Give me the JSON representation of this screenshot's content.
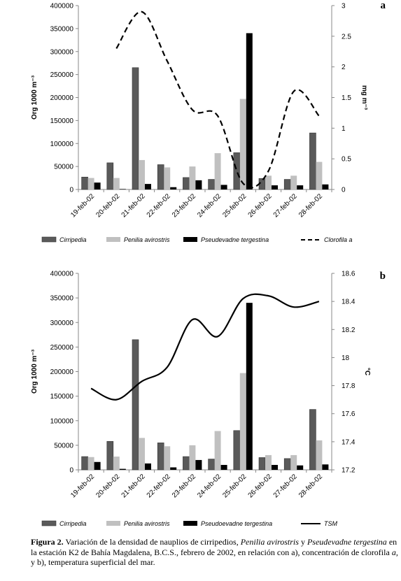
{
  "caption": {
    "label": "Figura 2.",
    "parts": [
      {
        "t": " Variación de la densidad de nauplios de cirripedios, ",
        "i": false
      },
      {
        "t": "Penilia avirostris",
        "i": true
      },
      {
        "t": " y ",
        "i": false
      },
      {
        "t": "Pseudevadne tergestina",
        "i": true
      },
      {
        "t": " en la estación K2 de Bahía Magdalena, B.C.S., febrero de 2002, en relación con  a), concentración de clorofila ",
        "i": false
      },
      {
        "t": "a,",
        "i": true
      },
      {
        "t": "  y b), temperatura superficial del mar.",
        "i": false
      }
    ]
  },
  "colors": {
    "cirripedia": "#5a5a5a",
    "penilia": "#c0c0c0",
    "pseudevadne": "#000000",
    "line": "#000000"
  },
  "chart_data": [
    {
      "type": "bar",
      "panel": "a",
      "categories": [
        "19-feb-02",
        "20-feb-02",
        "21-feb-02",
        "22-feb-02",
        "23-feb-02",
        "24-feb-02",
        "25-feb-02",
        "26-feb-02",
        "27-feb-02",
        "28-feb-02"
      ],
      "ylabel": "Org 1000 m⁻³",
      "ylim": [
        0,
        400000
      ],
      "yticks": [
        "0",
        "50000",
        "100000",
        "150000",
        "200000",
        "250000",
        "300000",
        "350000",
        "400000"
      ],
      "y2label": "mg m⁻³",
      "y2lim": [
        0,
        3
      ],
      "y2ticks": [
        "0",
        "0.5",
        "1",
        "1.5",
        "2",
        "2.5",
        "3"
      ],
      "series": [
        {
          "name": "Cirripedia",
          "values": [
            27000,
            58000,
            265000,
            54000,
            26000,
            22000,
            80000,
            24000,
            22000,
            123000
          ]
        },
        {
          "name": "Penilia avirostris",
          "values": [
            25000,
            25000,
            64000,
            48000,
            50000,
            79000,
            197000,
            30000,
            30000,
            60000
          ]
        },
        {
          "name": "Pseudevadne tergestina",
          "values": [
            15000,
            1000,
            12000,
            5000,
            20000,
            10000,
            340000,
            9000,
            9000,
            11000
          ]
        }
      ],
      "line_series": {
        "name": "Clorofila a",
        "style": "dashed",
        "values": [
          null,
          2.3,
          2.9,
          2.1,
          1.3,
          1.2,
          0.1,
          0.3,
          1.6,
          1.2
        ]
      },
      "grid": false,
      "legend": "bottom"
    },
    {
      "type": "bar",
      "panel": "b",
      "categories": [
        "19-feb-02",
        "20-feb-02",
        "21-feb-02",
        "22-feb-02",
        "23-feb-02",
        "24-feb-02",
        "25-feb-02",
        "26-feb-02",
        "27-feb-02",
        "28-feb-02"
      ],
      "ylabel": "Org 1000 m⁻³",
      "ylim": [
        0,
        400000
      ],
      "yticks": [
        "0",
        "50000",
        "100000",
        "150000",
        "200000",
        "250000",
        "300000",
        "350000",
        "400000"
      ],
      "y2label": "°C",
      "y2lim": [
        17.2,
        18.6
      ],
      "y2ticks": [
        "17.2",
        "17.4",
        "17.6",
        "17.8",
        "18",
        "18.2",
        "18.4",
        "18.6"
      ],
      "series": [
        {
          "name": "Cirripedia",
          "values": [
            27000,
            58000,
            265000,
            55000,
            27000,
            22000,
            80000,
            25000,
            23000,
            123000
          ]
        },
        {
          "name": "Penilia avirostris",
          "values": [
            26000,
            27000,
            65000,
            48000,
            50000,
            79000,
            197000,
            30000,
            30000,
            60000
          ]
        },
        {
          "name": "Pseudoevadne tergestina",
          "values": [
            16000,
            2000,
            13000,
            5000,
            20000,
            10000,
            340000,
            10000,
            9000,
            11000
          ]
        }
      ],
      "line_series": {
        "name": "TSM",
        "style": "solid",
        "values": [
          17.78,
          17.7,
          17.83,
          17.93,
          18.27,
          18.15,
          18.42,
          18.44,
          18.36,
          18.4
        ]
      },
      "grid": false,
      "legend": "bottom"
    }
  ]
}
